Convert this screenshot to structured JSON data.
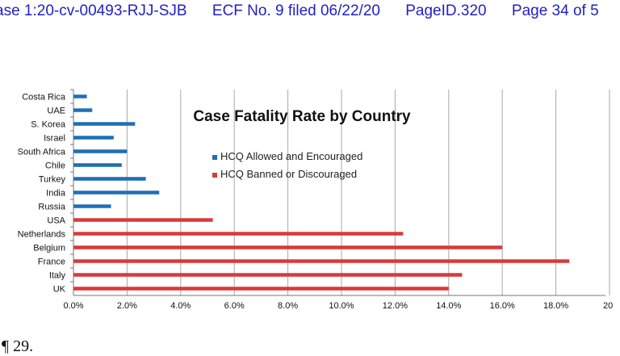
{
  "header": {
    "case": "ase 1:20-cv-00493-RJJ-SJB",
    "ecf": "ECF No. 9 filed 06/22/20",
    "page_id": "PageID.320",
    "page": "Page 34 of 5"
  },
  "footer": {
    "text": ". ¶ 29."
  },
  "chart_data": {
    "type": "bar",
    "orientation": "horizontal",
    "title": "Case Fatality Rate by Country",
    "xlim": [
      0,
      20
    ],
    "x_ticks": [
      0,
      2,
      4,
      6,
      8,
      10,
      12,
      14,
      16,
      18,
      20
    ],
    "x_tick_labels": [
      "0.0%",
      "2.0%",
      "4.0%",
      "6.0%",
      "8.0%",
      "10.0%",
      "12.0%",
      "14.0%",
      "16.0%",
      "18.0%",
      "20"
    ],
    "grid": "vertical",
    "legend_position": "center",
    "categories": [
      "Costa Rica",
      "UAE",
      "S. Korea",
      "Israel",
      "South Africa",
      "Chile",
      "Turkey",
      "India",
      "Russia",
      "USA",
      "Netherlands",
      "Belgium",
      "France",
      "Italy",
      "UK"
    ],
    "values": [
      0.5,
      0.7,
      2.3,
      1.5,
      2.0,
      1.8,
      2.7,
      3.2,
      1.4,
      5.2,
      12.3,
      16.0,
      18.5,
      14.5,
      14.0
    ],
    "series": [
      {
        "name": "HCQ Allowed and Encouraged",
        "color": "#1f6fb5",
        "categories": [
          "Costa Rica",
          "UAE",
          "S. Korea",
          "Israel",
          "South Africa",
          "Chile",
          "Turkey",
          "India",
          "Russia"
        ]
      },
      {
        "name": "HCQ Banned or Discouraged",
        "color": "#d93a3a",
        "categories": [
          "USA",
          "Netherlands",
          "Belgium",
          "France",
          "Italy",
          "UK"
        ]
      }
    ]
  }
}
